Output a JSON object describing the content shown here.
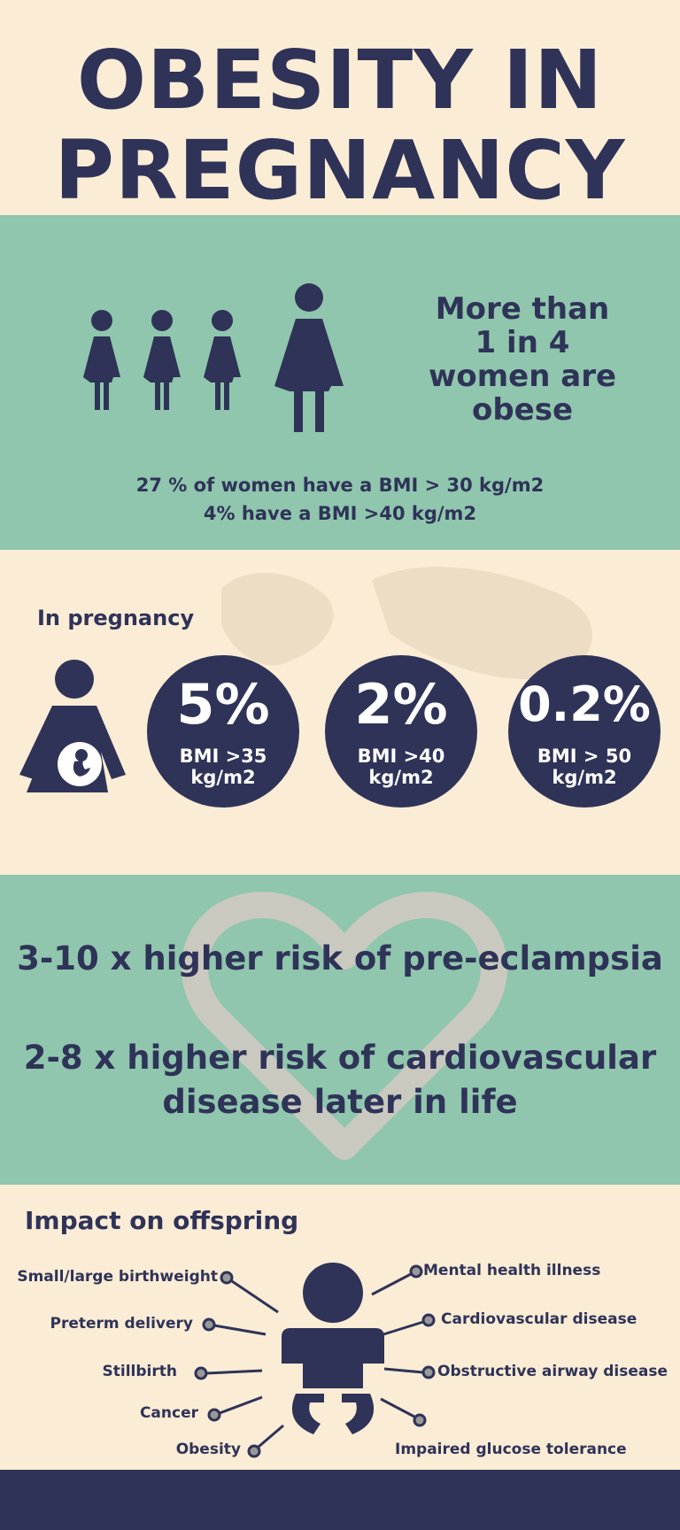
{
  "title": {
    "line1": "OBESITY IN",
    "line2": "PREGNANCY"
  },
  "obesity_stat": {
    "headline": [
      "More than",
      "1 in 4",
      "women are",
      "obese"
    ],
    "line1": "27 % of women have a BMI > 30 kg/m2",
    "line2": "4% have a BMI >40 kg/m2"
  },
  "pregnancy": {
    "heading": "In pregnancy",
    "stats": [
      {
        "value": "5%",
        "label1": "BMI >35",
        "label2": "kg/m2"
      },
      {
        "value": "2%",
        "label1": "BMI >40",
        "label2": "kg/m2"
      },
      {
        "value": "0.2%",
        "label1": "BMI > 50",
        "label2": "kg/m2"
      }
    ]
  },
  "risks": {
    "line1": "3-10 x higher risk of pre-eclampsia",
    "line2a": "2-8 x higher risk of cardiovascular",
    "line2b": "disease later in life"
  },
  "offspring": {
    "heading": "Impact on offspring",
    "left": [
      "Small/large birthweight",
      "Preterm delivery",
      "Stillbirth",
      "Cancer",
      "Obesity"
    ],
    "right": [
      "Mental health illness",
      "Cardiovascular disease",
      "Obstructive airway disease",
      "Impaired glucose tolerance"
    ]
  },
  "colors": {
    "background": "#fbecd5",
    "green": "#8fc6ad",
    "navy": "#2f3358",
    "heart": "#c9c9c0",
    "connector": "#999999"
  }
}
